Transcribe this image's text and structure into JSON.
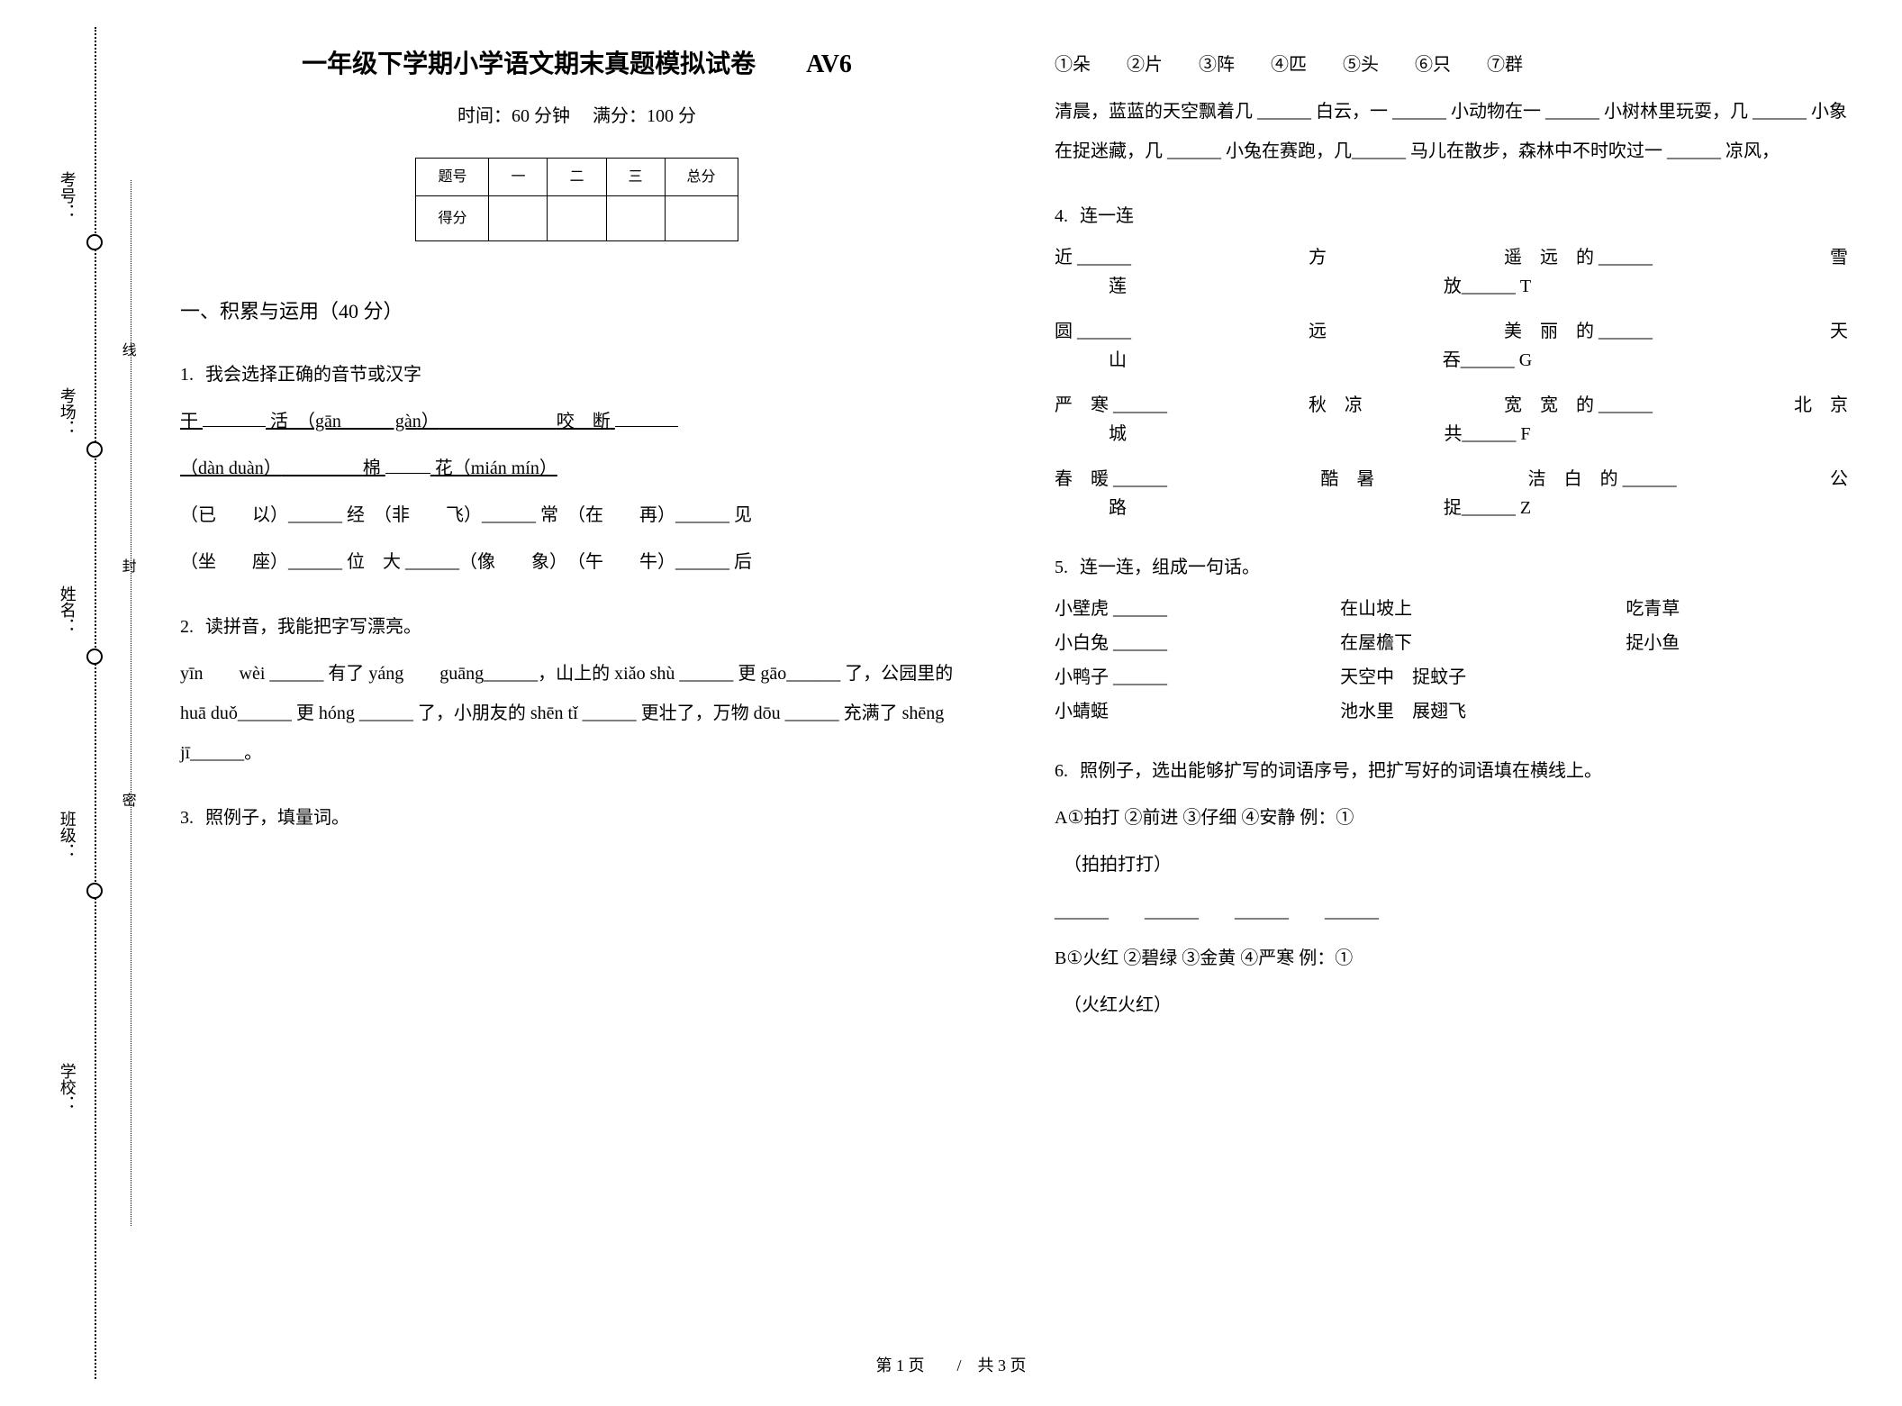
{
  "binding": {
    "labels": [
      "考号：",
      "考场：",
      "姓名：",
      "班级：",
      "学校："
    ],
    "seal_labels": [
      "线",
      "封",
      "密"
    ]
  },
  "title": "一年级下学期小学语文期末真题模拟试卷　　AV6",
  "subtitle": "时间：60 分钟　 满分：100 分",
  "score_table": {
    "headers": [
      "题号",
      "一",
      "二",
      "三",
      "总分"
    ],
    "row_label": "得分"
  },
  "section1": {
    "title": "一、积累与运用（40 分）"
  },
  "q1": {
    "num": "1.",
    "title": "我会选择正确的音节或汉字",
    "line1_a": "干",
    "line1_b": "活　（gān　　　gàn）",
    "line1_c": "咬　断",
    "line2_a": "（dàn  duàn）",
    "line2_b": "棉",
    "line2_c": "花（mián  mín）",
    "line3": "（已　　以）______ 经　（非　　飞）______ 常　（在　　再）______ 见",
    "line4": "（坐　　座）______ 位　大 ______（像　　象）　（午　　牛）______ 后"
  },
  "q2": {
    "num": "2.",
    "title": "读拼音，我能把字写漂亮。",
    "line1": "yīn　　wèi ______ 有了 yáng　　guāng______，山上的 xiǎo shù ______ 更 gāo______ 了，公园里的 huā duǒ______ 更 hóng ______ 了，小朋友的 shēn tǐ ______ 更壮了，万物 dōu ______ 充满了 shēng　　jī______。"
  },
  "q3": {
    "num": "3.",
    "title": "照例子，填量词。",
    "options": "①朵　　②片　　③阵　　④匹　　⑤头　　⑥只　　⑦群",
    "para": "清晨，蓝蓝的天空飘着几 ______ 白云，一 ______ 小动物在一 ______ 小树林里玩耍，几 ______ 小象在捉迷藏，几 ______ 小兔在赛跑，几______ 马儿在散步，森林中不时吹过一 ______ 凉风，"
  },
  "q4": {
    "num": "4.",
    "title": "连一连",
    "blocks": [
      {
        "l1a": "近 ______",
        "l1b": "方",
        "l1c": "遥　远　的 ______",
        "l1d": "雪",
        "l2a": "莲",
        "l2b": "放______ T"
      },
      {
        "l1a": "圆 ______",
        "l1b": "远",
        "l1c": "美　丽　的 ______",
        "l1d": "天",
        "l2a": "山",
        "l2b": "吞______ G"
      },
      {
        "l1a": "严　寒 ______",
        "l1b": "秋　凉",
        "l1c": "宽　宽　的 ______",
        "l1d": "北　京",
        "l2a": "城",
        "l2b": "共______ F"
      },
      {
        "l1a": "春　暖 ______",
        "l1b": "酷　暑",
        "l1c": "洁　白　的 ______",
        "l1d": "公",
        "l2a": "路",
        "l2b": "捉______ Z"
      }
    ]
  },
  "q5": {
    "num": "5.",
    "title": "连一连，组成一句话。",
    "rows": [
      {
        "a": "小壁虎 ______",
        "b": "在山坡上",
        "c": "吃青草"
      },
      {
        "a": "小白兔 ______",
        "b": "在屋檐下",
        "c": "捉小鱼"
      },
      {
        "a": "小鸭子 ______",
        "b": "天空中　捉蚊子",
        "c": ""
      },
      {
        "a": "小蜻蜓",
        "b": "池水里　展翅飞",
        "c": ""
      }
    ]
  },
  "q6": {
    "num": "6.",
    "title": "照例子，选出能够扩写的词语序号，把扩写好的词语填在横线上。",
    "partA_title": "A①拍打  ②前进  ③仔细  ④安静 例：①",
    "partA_example": "（拍拍打打）",
    "partA_blanks": "______　　______　　______　　______",
    "partB_title": "B①火红  ②碧绿  ③金黄  ④严寒 例：①",
    "partB_example": "（火红火红）"
  },
  "footer": "第 1 页　　/　共 3 页"
}
